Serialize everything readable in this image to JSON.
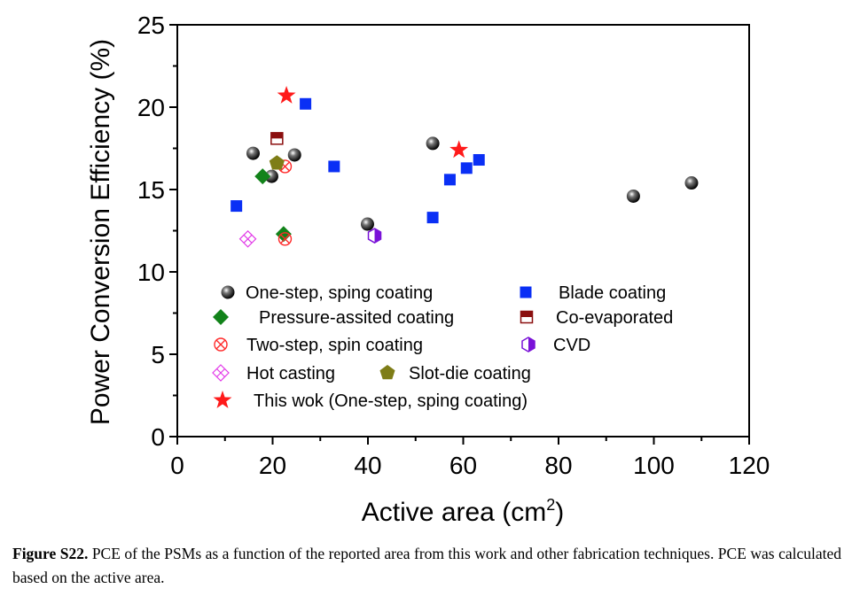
{
  "chart_data": {
    "type": "scatter",
    "xlabel": "Active area (cm",
    "xlabel_sup": "2",
    "xlabel_end": ")",
    "ylabel": "Power Conversion Efficiency (%)",
    "xlim": [
      0,
      120
    ],
    "ylim": [
      0,
      25
    ],
    "x_ticks": [
      0,
      20,
      40,
      60,
      80,
      100,
      120
    ],
    "y_ticks": [
      0,
      5,
      10,
      15,
      20,
      25
    ],
    "grid": false,
    "legend_position": "inside-bottom",
    "series": [
      {
        "name": "One-step, sping coating",
        "marker": "sphere",
        "color": "#000000",
        "points": [
          [
            15.9,
            17.2
          ],
          [
            19.8,
            15.8
          ],
          [
            24.6,
            17.1
          ],
          [
            39.9,
            12.9
          ],
          [
            53.6,
            17.8
          ],
          [
            95.7,
            14.6
          ],
          [
            107.9,
            15.4
          ]
        ]
      },
      {
        "name": "Blade coating",
        "marker": "square",
        "color": "#0a2ff5",
        "points": [
          [
            12.4,
            14.0
          ],
          [
            26.9,
            20.2
          ],
          [
            32.9,
            16.4
          ],
          [
            53.6,
            13.3
          ],
          [
            57.2,
            15.6
          ],
          [
            60.7,
            16.3
          ],
          [
            63.3,
            16.8
          ]
        ]
      },
      {
        "name": "Pressure-assited coating",
        "marker": "diamond",
        "color": "#12831a",
        "points": [
          [
            17.9,
            15.8
          ],
          [
            22.3,
            12.3
          ]
        ]
      },
      {
        "name": "Co-evaporated",
        "marker": "half-square",
        "color": "#8b0f0f",
        "points": [
          [
            20.9,
            18.1
          ]
        ]
      },
      {
        "name": "Two-step, spin coating",
        "marker": "circle-x",
        "color": "#ff2a2a",
        "points": [
          [
            22.6,
            16.4
          ],
          [
            22.6,
            12.0
          ]
        ]
      },
      {
        "name": "CVD",
        "marker": "half-hexagon",
        "color": "#7a12d8",
        "points": [
          [
            41.4,
            12.2
          ]
        ]
      },
      {
        "name": "Hot casting",
        "marker": "diamond-x",
        "color": "#e23be8",
        "points": [
          [
            14.8,
            12.0
          ]
        ]
      },
      {
        "name": "Slot-die coating",
        "marker": "pentagon",
        "color": "#7e7d17",
        "points": [
          [
            20.9,
            16.6
          ]
        ]
      },
      {
        "name": "This wok (One-step, sping coating)",
        "marker": "star",
        "color": "#ff1a1a",
        "points": [
          [
            22.9,
            20.7
          ],
          [
            59.1,
            17.4
          ]
        ]
      }
    ]
  },
  "caption": {
    "label": "Figure S22.",
    "text": " PCE of the PSMs as a function of the reported area from this work and other fabrication techniques. PCE was calculated based on the active area."
  }
}
